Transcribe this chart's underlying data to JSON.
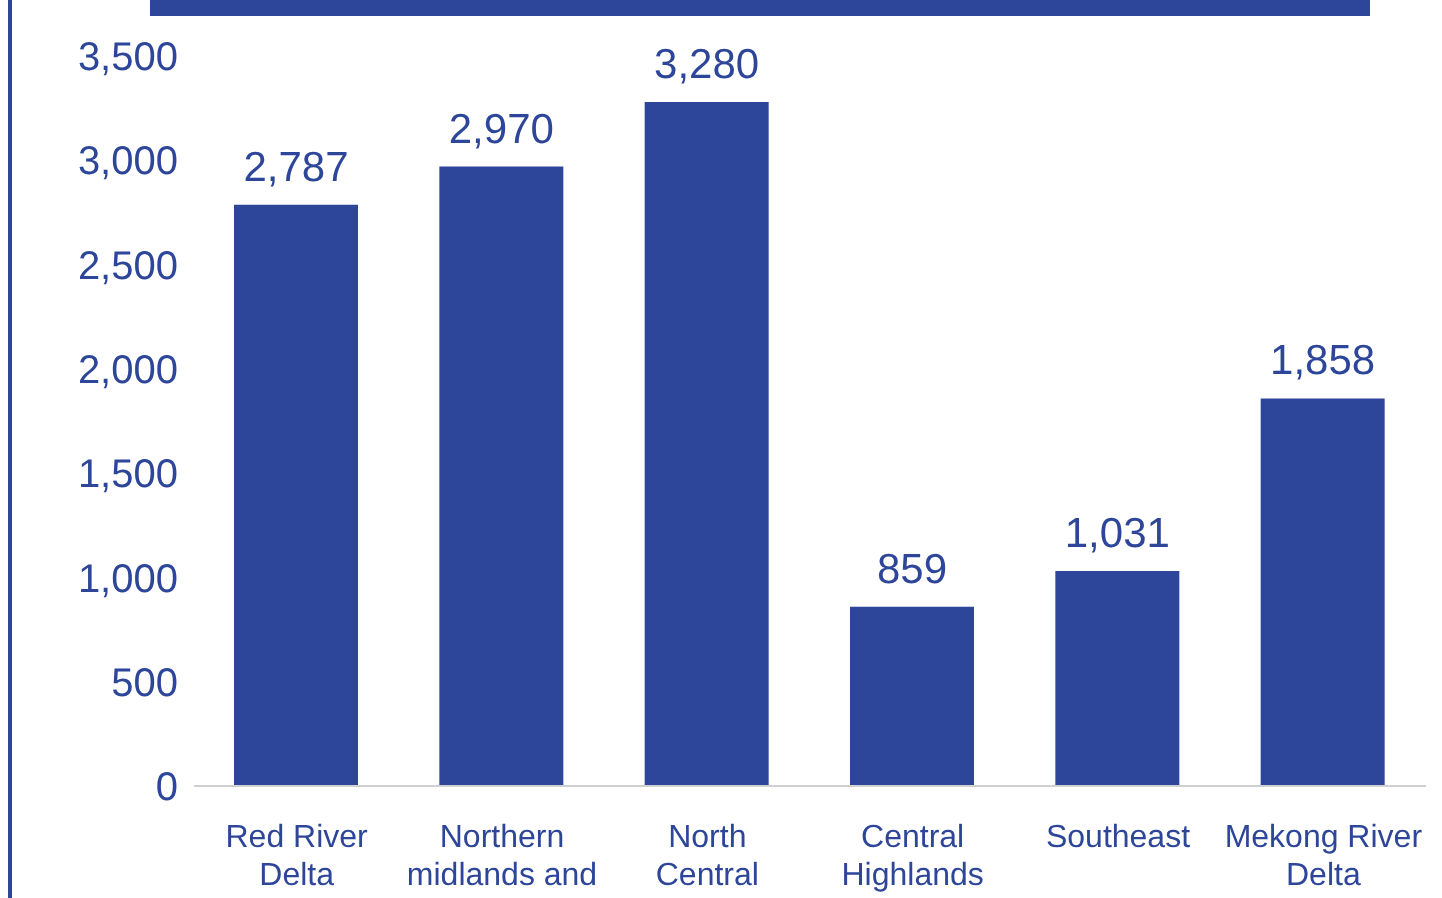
{
  "chart_data": {
    "type": "bar",
    "categories": [
      "Red River Delta",
      "Northern midlands and",
      "North Central",
      "Central Highlands",
      "Southeast",
      "Mekong River Delta"
    ],
    "values": [
      2787,
      2970,
      3280,
      859,
      1031,
      1858
    ],
    "color": "#2e4699",
    "ylim": [
      0,
      3500
    ],
    "yticks": [
      {
        "value": 0,
        "label": "0"
      },
      {
        "value": 500,
        "label": "500"
      },
      {
        "value": 1000,
        "label": "1,000"
      },
      {
        "value": 1500,
        "label": "1,500"
      },
      {
        "value": 2000,
        "label": "2,000"
      },
      {
        "value": 2500,
        "label": "2,500"
      },
      {
        "value": 3000,
        "label": "3,000"
      },
      {
        "value": 3500,
        "label": "3,500"
      }
    ],
    "value_labels": [
      "2,787",
      "2,970",
      "3,280",
      "859",
      "1,031",
      "1,858"
    ]
  }
}
